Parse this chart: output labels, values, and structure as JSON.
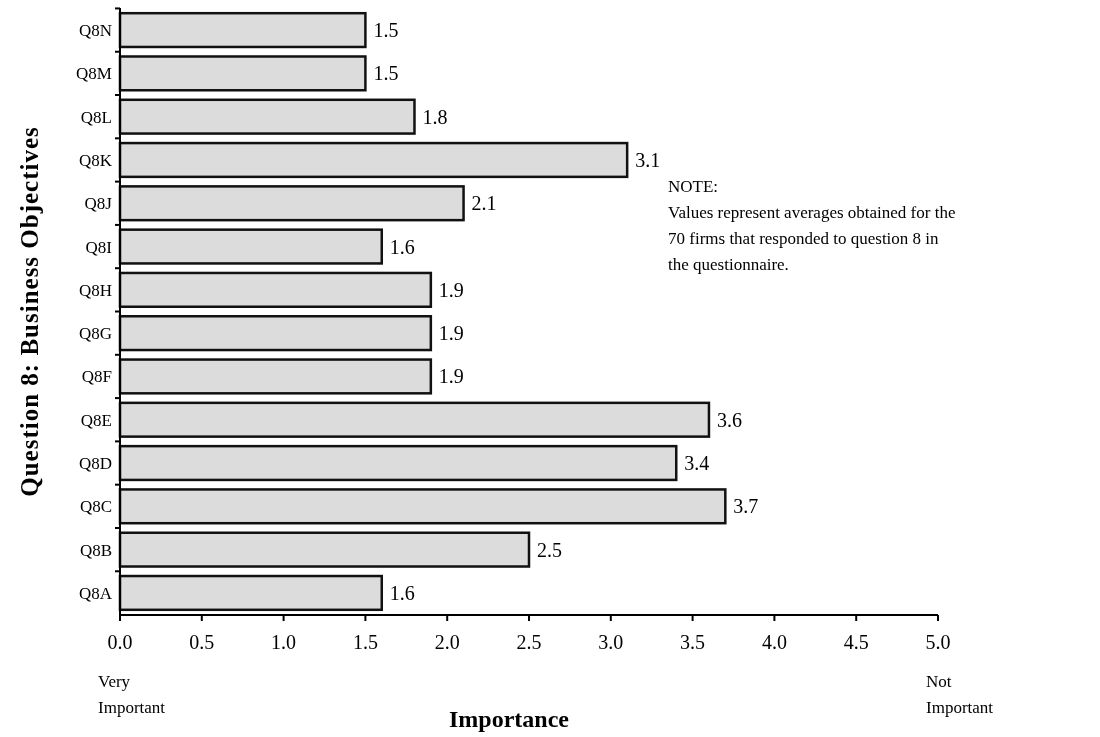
{
  "chart_data": {
    "type": "bar",
    "orientation": "horizontal",
    "xlabel": "Importance",
    "ylabel": "Question 8: Business Objectives",
    "categories": [
      "Q8N",
      "Q8M",
      "Q8L",
      "Q8K",
      "Q8J",
      "Q8I",
      "Q8H",
      "Q8G",
      "Q8F",
      "Q8E",
      "Q8D",
      "Q8C",
      "Q8B",
      "Q8A"
    ],
    "values": [
      1.5,
      1.5,
      1.8,
      3.1,
      2.1,
      1.6,
      1.9,
      1.9,
      1.9,
      3.6,
      3.4,
      3.7,
      2.5,
      1.6
    ],
    "color": "#dcdcdc",
    "data_labels": true,
    "xlim": [
      0,
      5
    ],
    "xticks": [
      {
        "value": 0,
        "label": "0.0"
      },
      {
        "value": 0.5,
        "label": "0.5"
      },
      {
        "value": 1,
        "label": "1.0"
      },
      {
        "value": 1.5,
        "label": "1.5"
      },
      {
        "value": 2,
        "label": "2.0"
      },
      {
        "value": 2.5,
        "label": "2.5"
      },
      {
        "value": 3,
        "label": "3.0"
      },
      {
        "value": 3.5,
        "label": "3.5"
      },
      {
        "value": 4,
        "label": "4.0"
      },
      {
        "value": 4.5,
        "label": "4.5"
      },
      {
        "value": 5,
        "label": "5.0"
      }
    ],
    "annotations": [
      "Very Important",
      "Not Important",
      "NOTE:",
      "Values represent averages obtained for the 70 firms that responded to question 8 in the questionnaire."
    ]
  }
}
